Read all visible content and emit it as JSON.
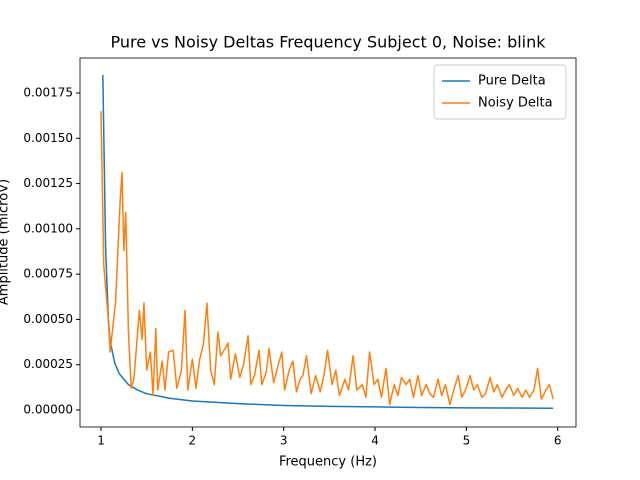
{
  "chart_data": {
    "type": "line",
    "title": "Pure vs Noisy Deltas Frequency Subject 0, Noise: blink",
    "x_label": "Frequency (Hz)",
    "y_label": "Amplitude (microV)",
    "xlim": [
      0.77,
      6.2
    ],
    "ylim": [
      -9.38e-05,
      0.001943
    ],
    "xticks": [
      1,
      2,
      3,
      4,
      5,
      6
    ],
    "yticks": [
      {
        "value": 0,
        "label": "0.00000"
      },
      {
        "value": 0.00025,
        "label": "0.00025"
      },
      {
        "value": 0.0005,
        "label": "0.00050"
      },
      {
        "value": 0.00075,
        "label": "0.00075"
      },
      {
        "value": 0.001,
        "label": "0.00100"
      },
      {
        "value": 0.00125,
        "label": "0.00125"
      },
      {
        "value": 0.0015,
        "label": "0.00150"
      },
      {
        "value": 0.00175,
        "label": "0.00175"
      }
    ],
    "legend": "upper right",
    "grid": false,
    "series": [
      {
        "name": "Pure Delta",
        "color": "#1f77b4",
        "x": [
          1.02,
          1.05,
          1.08,
          1.1,
          1.15,
          1.2,
          1.3,
          1.4,
          1.5,
          1.75,
          2,
          2.5,
          3,
          3.5,
          4,
          4.5,
          5,
          5.5,
          5.95
        ],
        "values": [
          0.00185,
          0.0009,
          0.0005,
          0.00038,
          0.00026,
          0.0002,
          0.00014,
          0.00011,
          9e-05,
          6.5e-05,
          5e-05,
          3.5e-05,
          2.5e-05,
          2e-05,
          1.7e-05,
          1.4e-05,
          1.2e-05,
          1.1e-05,
          1e-05
        ]
      },
      {
        "name": "Noisy Delta",
        "color": "#ff7f0e",
        "x": [
          1.0,
          1.03,
          1.08,
          1.1,
          1.16,
          1.21,
          1.23,
          1.25,
          1.27,
          1.3,
          1.33,
          1.36,
          1.42,
          1.45,
          1.47,
          1.5,
          1.54,
          1.57,
          1.6,
          1.62,
          1.67,
          1.7,
          1.74,
          1.79,
          1.83,
          1.88,
          1.92,
          1.95,
          2.0,
          2.04,
          2.08,
          2.12,
          2.16,
          2.2,
          2.24,
          2.28,
          2.31,
          2.36,
          2.39,
          2.42,
          2.47,
          2.52,
          2.56,
          2.61,
          2.64,
          2.68,
          2.73,
          2.76,
          2.81,
          2.84,
          2.89,
          2.94,
          2.98,
          3.01,
          3.06,
          3.1,
          3.14,
          3.18,
          3.21,
          3.25,
          3.3,
          3.35,
          3.4,
          3.44,
          3.48,
          3.53,
          3.57,
          3.61,
          3.67,
          3.71,
          3.76,
          3.8,
          3.86,
          3.9,
          3.94,
          3.99,
          4.03,
          4.07,
          4.12,
          4.16,
          4.21,
          4.25,
          4.29,
          4.34,
          4.38,
          4.42,
          4.47,
          4.51,
          4.56,
          4.6,
          4.64,
          4.69,
          4.73,
          4.77,
          4.82,
          4.86,
          4.91,
          4.95,
          4.99,
          5.04,
          5.08,
          5.12,
          5.17,
          5.21,
          5.26,
          5.3,
          5.34,
          5.39,
          5.43,
          5.47,
          5.52,
          5.56,
          5.61,
          5.65,
          5.69,
          5.74,
          5.78,
          5.82,
          5.87,
          5.91,
          5.95
        ],
        "values": [
          0.00165,
          0.0008,
          0.0005,
          0.00032,
          0.0006,
          0.00116,
          0.00131,
          0.00088,
          0.00109,
          0.00044,
          0.00012,
          0.00017,
          0.00055,
          0.00039,
          0.00059,
          0.00022,
          0.00032,
          8e-05,
          0.00045,
          0.00011,
          0.00027,
          0.00011,
          0.00032,
          0.00033,
          0.00012,
          0.00022,
          0.00055,
          0.00011,
          0.00028,
          0.00012,
          0.00028,
          0.00036,
          0.00059,
          0.00022,
          0.00014,
          0.00043,
          0.0003,
          0.00034,
          0.00037,
          0.00017,
          0.00031,
          0.00018,
          0.00025,
          0.00041,
          0.00014,
          0.00019,
          0.00033,
          0.00014,
          0.00021,
          0.00034,
          0.00015,
          0.00025,
          0.00032,
          0.00011,
          0.00022,
          0.00027,
          0.0001,
          0.00017,
          0.00019,
          0.0003,
          9e-05,
          0.00019,
          0.0001,
          0.00019,
          0.00033,
          0.00014,
          0.00022,
          8e-05,
          0.00017,
          0.00011,
          0.0003,
          0.00011,
          0.00014,
          7e-05,
          0.00032,
          0.00014,
          0.00017,
          7e-05,
          0.00023,
          3e-05,
          0.00014,
          8e-05,
          0.00018,
          0.00014,
          0.00017,
          7e-05,
          0.00019,
          8e-05,
          0.00014,
          9e-05,
          7e-05,
          0.00017,
          8e-05,
          0.00014,
          3e-05,
          0.00011,
          0.00019,
          7e-05,
          0.00011,
          0.00019,
          0.00011,
          0.00014,
          7e-05,
          9e-05,
          0.00018,
          0.0001,
          0.00014,
          7e-05,
          0.00011,
          0.00014,
          8e-05,
          0.00012,
          7e-05,
          0.00011,
          7e-05,
          0.00011,
          0.00023,
          6e-05,
          0.00011,
          0.00014,
          6e-05
        ]
      }
    ]
  }
}
